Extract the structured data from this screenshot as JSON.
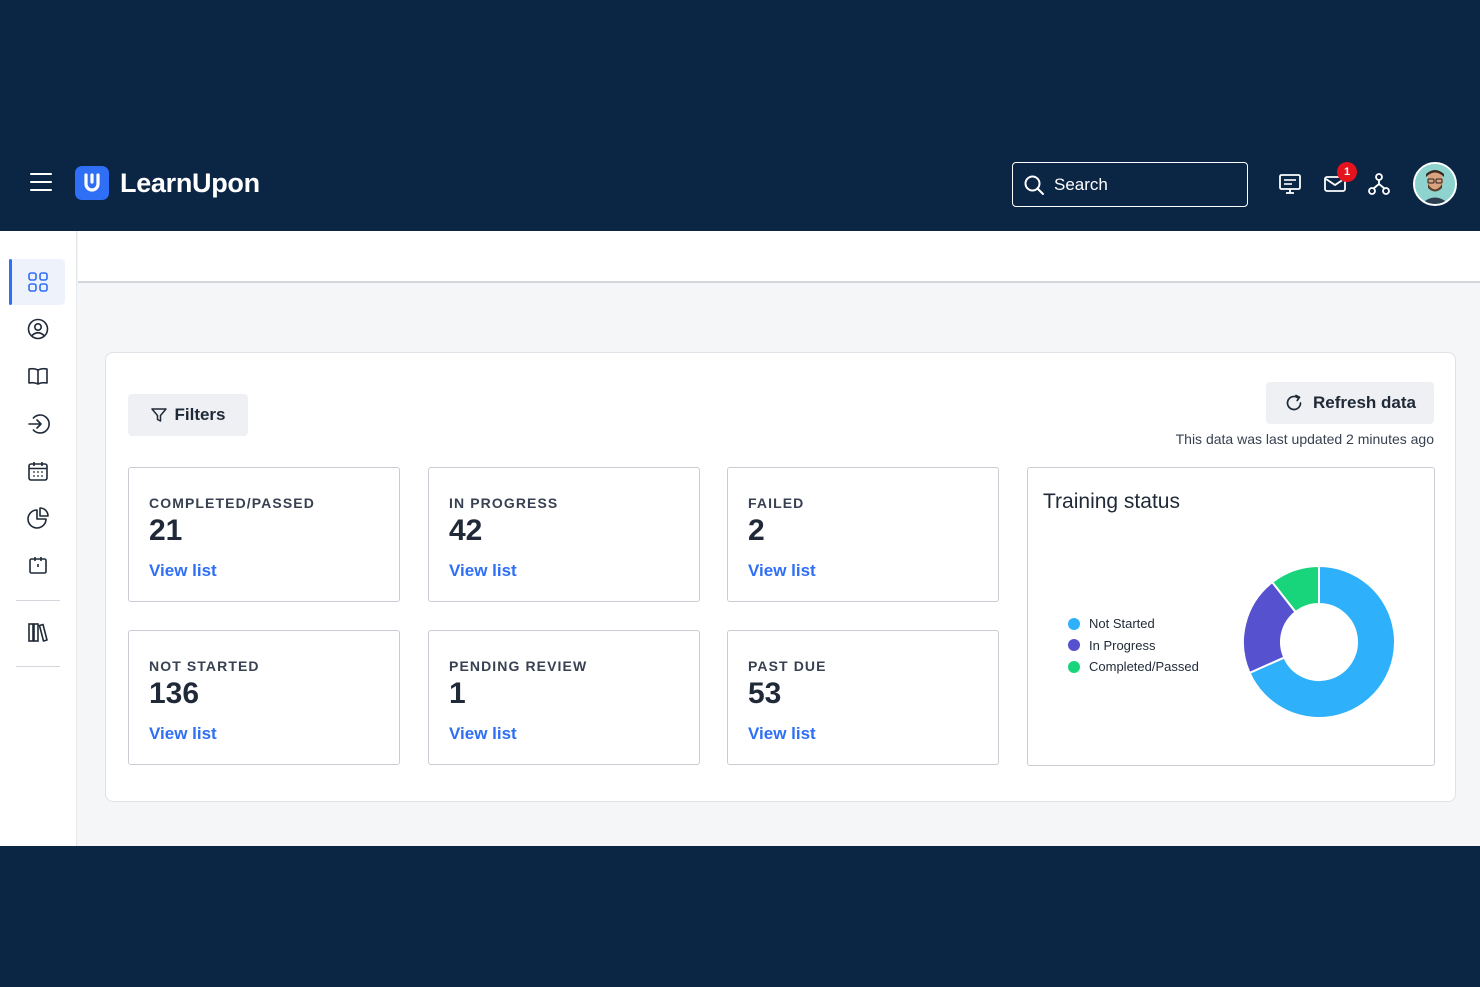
{
  "brand": {
    "name": "LearnUpon"
  },
  "search": {
    "label": "Search"
  },
  "notifications": {
    "count": "1"
  },
  "toolbar": {
    "filters_label": "Filters",
    "refresh_label": "Refresh data",
    "updated_text": "This data was last updated 2 minutes ago"
  },
  "sidebar": {
    "items": [
      {
        "icon": "dashboard-icon",
        "active": true
      },
      {
        "icon": "user-icon"
      },
      {
        "icon": "book-icon"
      },
      {
        "icon": "sign-in-icon"
      },
      {
        "icon": "calendar-icon"
      },
      {
        "icon": "pie-chart-icon"
      },
      {
        "icon": "calendar-check-icon"
      },
      {
        "icon": "library-icon"
      }
    ]
  },
  "stats": [
    {
      "label": "COMPLETED/PASSED",
      "value": "21",
      "link": "View list"
    },
    {
      "label": "IN PROGRESS",
      "value": "42",
      "link": "View list"
    },
    {
      "label": "FAILED",
      "value": "2",
      "link": "View list"
    },
    {
      "label": "NOT STARTED",
      "value": "136",
      "link": "View list"
    },
    {
      "label": "PENDING REVIEW",
      "value": "1",
      "link": "View list"
    },
    {
      "label": "PAST DUE",
      "value": "53",
      "link": "View list"
    }
  ],
  "colors": {
    "brand": "#2f6ff6",
    "navy": "#0b2545",
    "not_started": "#2fb0fb",
    "in_progress": "#5551cf",
    "completed": "#18d57b",
    "badge": "#e5131d"
  },
  "chart_data": {
    "type": "pie",
    "title": "Training status",
    "donut": true,
    "legend_position": "left",
    "categories": [
      "Not Started",
      "In Progress",
      "Completed/Passed"
    ],
    "values": [
      136,
      42,
      21
    ],
    "colors": [
      "#2fb0fb",
      "#5551cf",
      "#18d57b"
    ]
  }
}
